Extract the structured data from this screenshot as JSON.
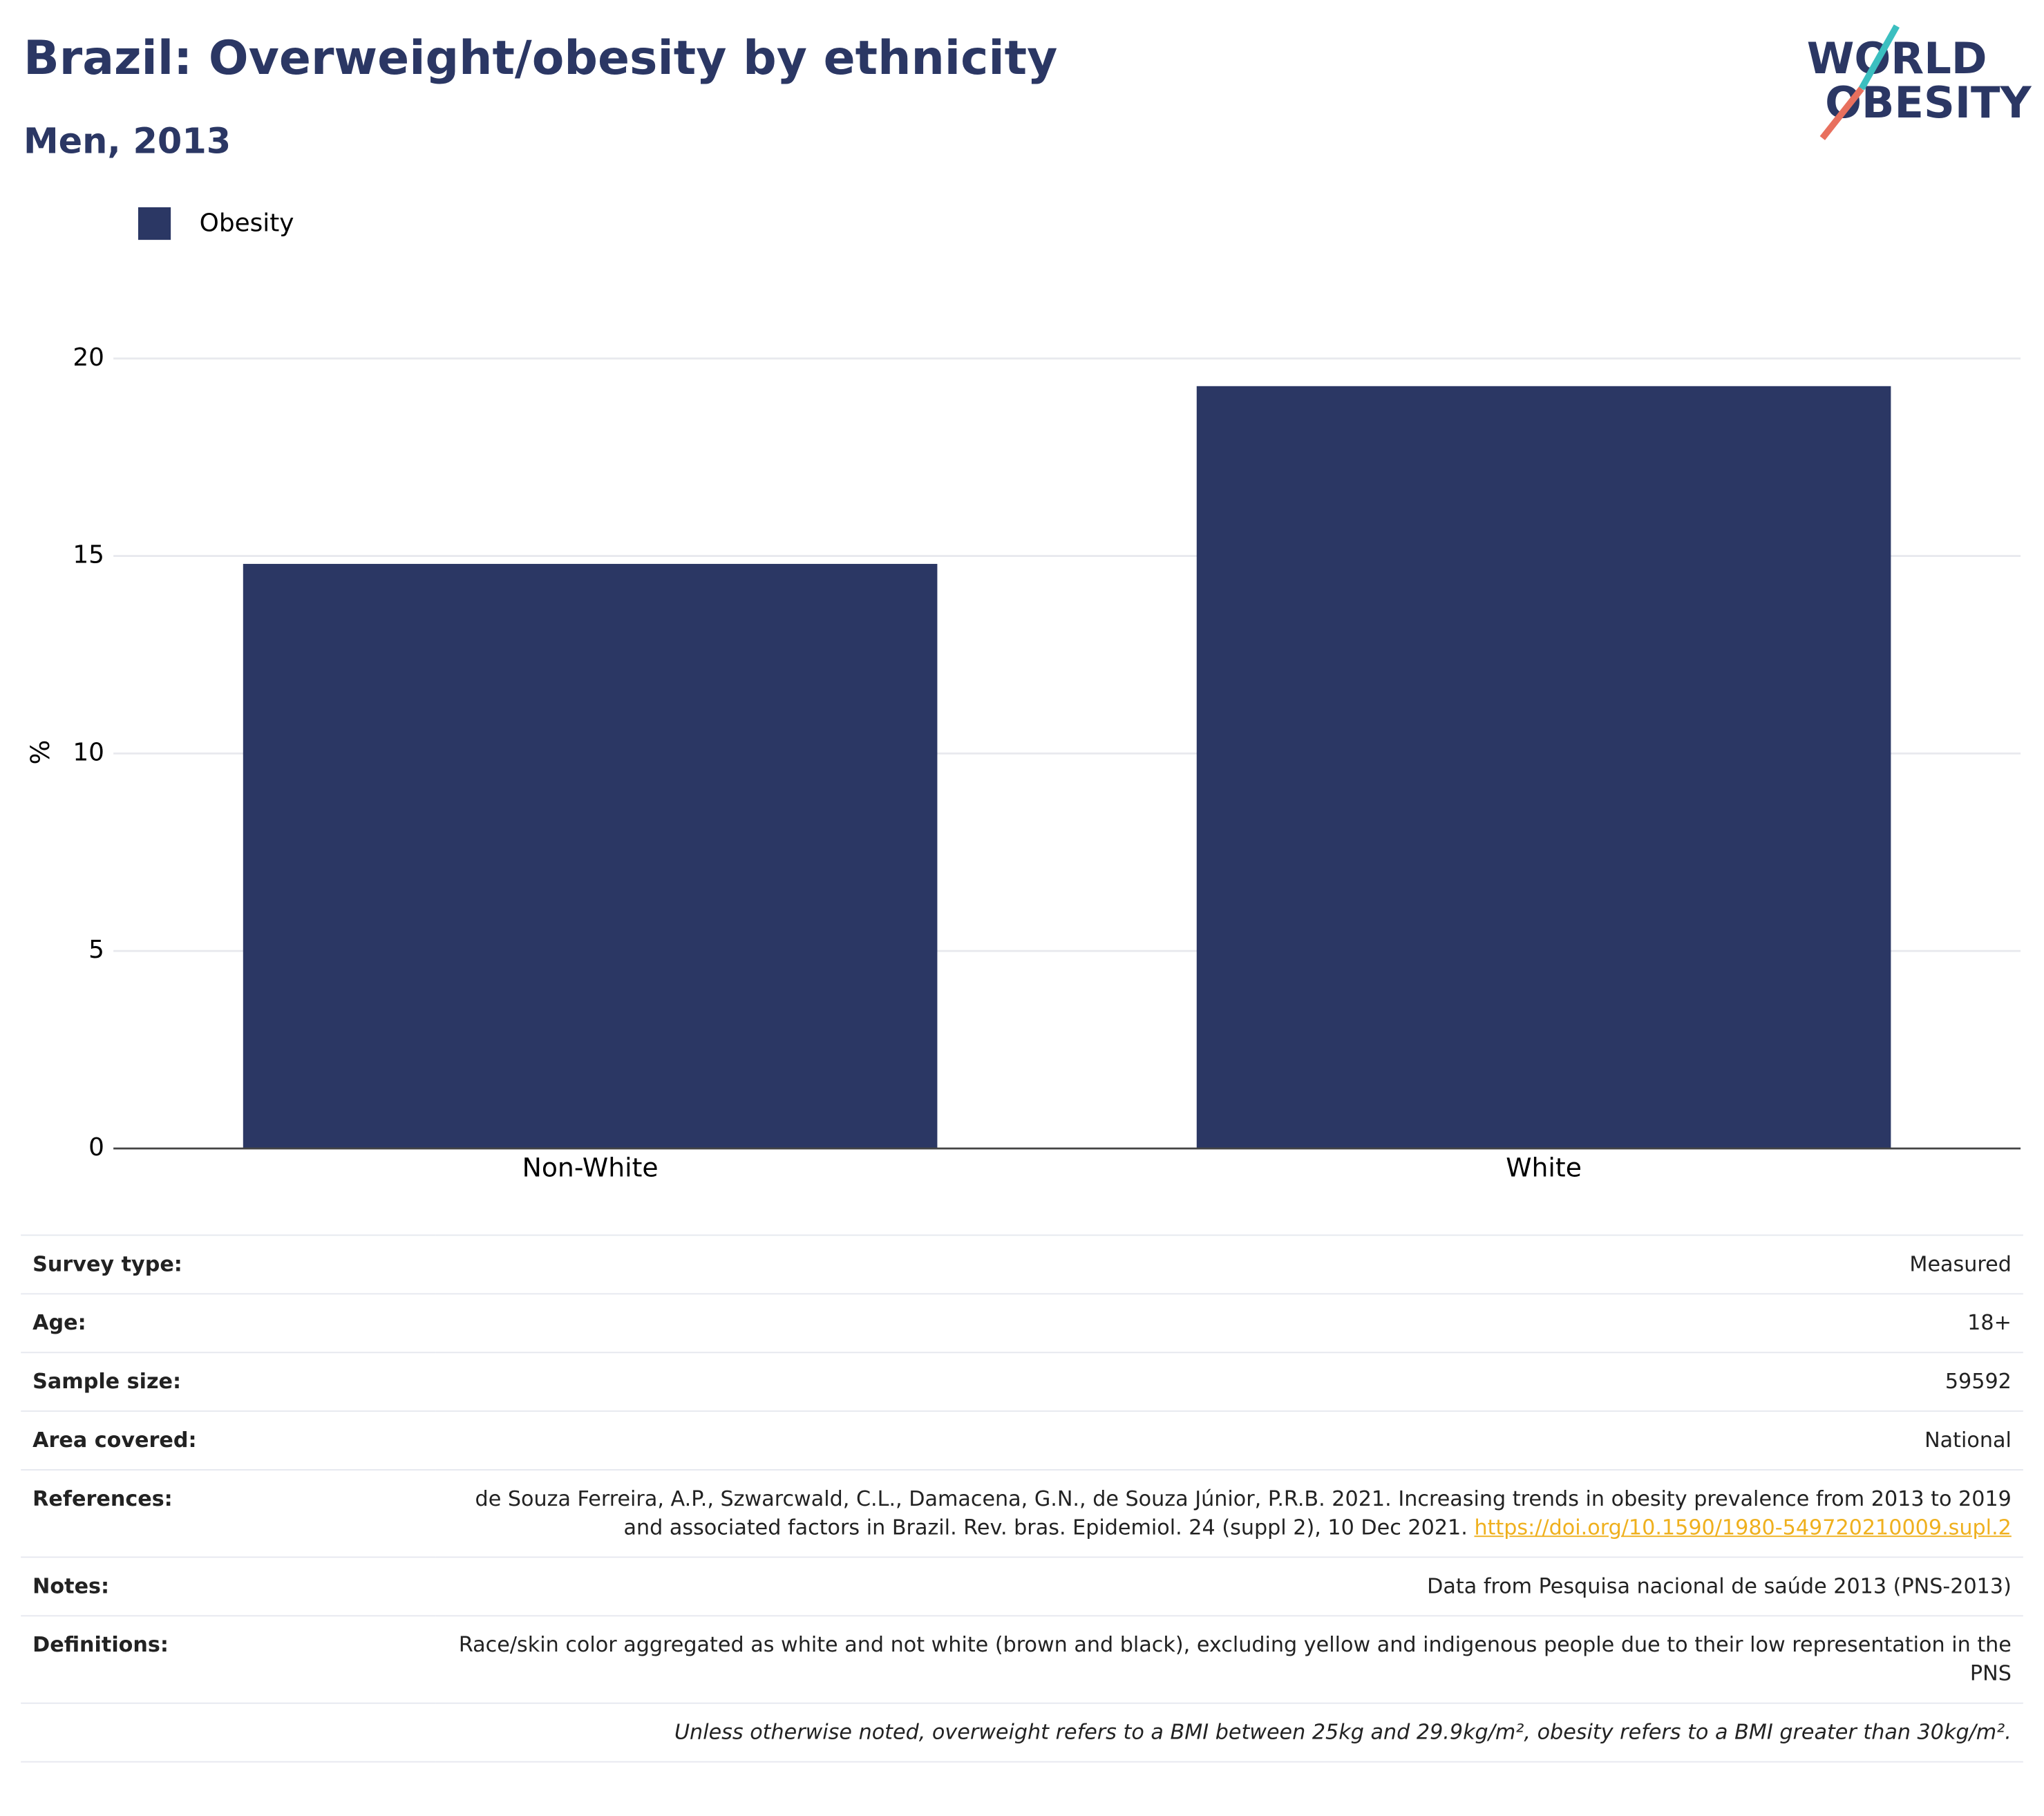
{
  "chart_data": {
    "type": "bar",
    "title": "Brazil: Overweight/obesity by ethnicity",
    "subtitle": "Men, 2013",
    "y_label": "%",
    "categories": [
      "Non-White",
      "White"
    ],
    "series": [
      {
        "name": "Obesity",
        "color": "#2b3764",
        "values": [
          14.8,
          19.3
        ]
      }
    ],
    "ylim": [
      0,
      20
    ],
    "yticks": [
      0,
      5,
      10,
      15,
      20
    ],
    "grid": true,
    "legend": "top-left"
  },
  "logo": {
    "line1": "WORLD",
    "line2": "OBESITY"
  },
  "table": {
    "rows": [
      {
        "label": "Survey type:",
        "value": "Measured"
      },
      {
        "label": "Age:",
        "value": "18+"
      },
      {
        "label": "Sample size:",
        "value": "59592"
      },
      {
        "label": "Area covered:",
        "value": "National"
      },
      {
        "label": "References:",
        "value": "de Souza Ferreira, A.P., Szwarcwald, C.L., Damacena, G.N., de Souza Júnior, P.R.B. 2021. Increasing trends in obesity prevalence from 2013 to 2019 and associated factors in Brazil. Rev. bras. Epidemiol. 24 (suppl 2), 10 Dec 2021.",
        "link": "https://doi.org/10.1590/1980-549720210009.supl.2"
      },
      {
        "label": "Notes:",
        "value": "Data from Pesquisa nacional de saúde 2013 (PNS-2013)"
      },
      {
        "label": "Definitions:",
        "value": "Race/skin color aggregated as white and not white (brown and black), excluding yellow and indigenous people due to their low representation in the PNS"
      }
    ],
    "footnote": "Unless otherwise noted, overweight refers to a BMI between 25kg and 29.9kg/m², obesity refers to a BMI greater than 30kg/m²."
  }
}
